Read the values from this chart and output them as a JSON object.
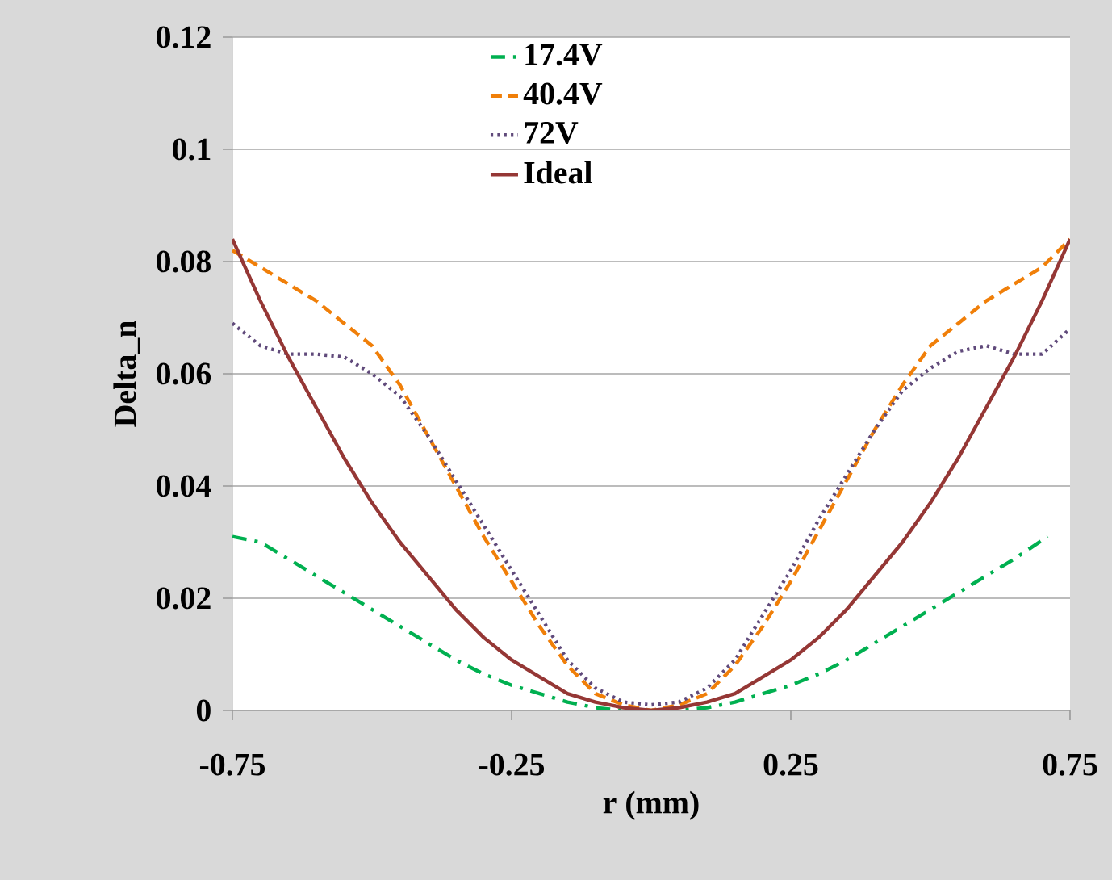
{
  "chart_data": {
    "type": "line",
    "xlabel": "r (mm)",
    "ylabel": "Delta_n",
    "xlim": [
      -0.75,
      0.75
    ],
    "xticks": [
      -0.75,
      -0.25,
      0.25,
      0.75
    ],
    "ylim": [
      0,
      0.12
    ],
    "yticks": [
      0,
      0.02,
      0.04,
      0.06,
      0.08,
      0.1,
      0.12
    ],
    "grid": "y",
    "legend": "top",
    "marker": "none",
    "series": [
      {
        "name": "17.4V",
        "color": "#00b050",
        "line_style": "dashdot",
        "x": [
          -0.75,
          -0.7,
          -0.65,
          -0.6,
          -0.55,
          -0.5,
          -0.45,
          -0.4,
          -0.35,
          -0.3,
          -0.25,
          -0.2,
          -0.15,
          -0.1,
          -0.05,
          0,
          0.05,
          0.1,
          0.15,
          0.2,
          0.25,
          0.3,
          0.35,
          0.4,
          0.45,
          0.5,
          0.55,
          0.6,
          0.65,
          0.71
        ],
        "values": [
          0.031,
          0.03,
          0.027,
          0.024,
          0.021,
          0.018,
          0.015,
          0.012,
          0.009,
          0.0065,
          0.0045,
          0.003,
          0.0015,
          0.0005,
          0,
          0,
          0,
          0.0005,
          0.0015,
          0.003,
          0.0045,
          0.0065,
          0.009,
          0.012,
          0.015,
          0.018,
          0.021,
          0.024,
          0.027,
          0.031
        ]
      },
      {
        "name": "40.4V",
        "color": "#f07f09",
        "line_style": "dashed",
        "x": [
          -0.75,
          -0.7,
          -0.65,
          -0.6,
          -0.55,
          -0.5,
          -0.45,
          -0.4,
          -0.35,
          -0.3,
          -0.25,
          -0.2,
          -0.15,
          -0.1,
          -0.05,
          0,
          0.05,
          0.1,
          0.15,
          0.2,
          0.25,
          0.3,
          0.35,
          0.4,
          0.45,
          0.5,
          0.55,
          0.6,
          0.65,
          0.7,
          0.75
        ],
        "values": [
          0.082,
          0.079,
          0.076,
          0.073,
          0.069,
          0.065,
          0.058,
          0.049,
          0.04,
          0.031,
          0.023,
          0.015,
          0.008,
          0.003,
          0.001,
          0,
          0.001,
          0.003,
          0.008,
          0.015,
          0.023,
          0.032,
          0.041,
          0.05,
          0.058,
          0.065,
          0.069,
          0.073,
          0.076,
          0.079,
          0.084
        ]
      },
      {
        "name": "72V",
        "color": "#604a7b",
        "line_style": "dotted",
        "x": [
          -0.75,
          -0.7,
          -0.65,
          -0.6,
          -0.55,
          -0.5,
          -0.45,
          -0.4,
          -0.35,
          -0.3,
          -0.25,
          -0.2,
          -0.15,
          -0.1,
          -0.05,
          0,
          0.05,
          0.1,
          0.15,
          0.2,
          0.25,
          0.3,
          0.35,
          0.4,
          0.45,
          0.5,
          0.55,
          0.6,
          0.65,
          0.7,
          0.75
        ],
        "values": [
          0.069,
          0.065,
          0.0635,
          0.0635,
          0.063,
          0.06,
          0.056,
          0.049,
          0.041,
          0.033,
          0.025,
          0.017,
          0.009,
          0.004,
          0.0015,
          0.001,
          0.0015,
          0.004,
          0.009,
          0.017,
          0.025,
          0.034,
          0.042,
          0.05,
          0.057,
          0.061,
          0.064,
          0.065,
          0.0635,
          0.0635,
          0.068
        ]
      },
      {
        "name": "Ideal",
        "color": "#953735",
        "line_style": "solid",
        "x": [
          -0.75,
          -0.7,
          -0.65,
          -0.6,
          -0.55,
          -0.5,
          -0.45,
          -0.4,
          -0.35,
          -0.3,
          -0.25,
          -0.2,
          -0.15,
          -0.1,
          -0.05,
          0,
          0.05,
          0.1,
          0.15,
          0.2,
          0.25,
          0.3,
          0.35,
          0.4,
          0.45,
          0.5,
          0.55,
          0.6,
          0.65,
          0.7,
          0.75
        ],
        "values": [
          0.084,
          0.073,
          0.063,
          0.054,
          0.045,
          0.037,
          0.03,
          0.024,
          0.018,
          0.013,
          0.009,
          0.006,
          0.003,
          0.0015,
          0.0005,
          0,
          0.0005,
          0.0015,
          0.003,
          0.006,
          0.009,
          0.013,
          0.018,
          0.024,
          0.03,
          0.037,
          0.045,
          0.054,
          0.063,
          0.073,
          0.084
        ]
      }
    ]
  }
}
